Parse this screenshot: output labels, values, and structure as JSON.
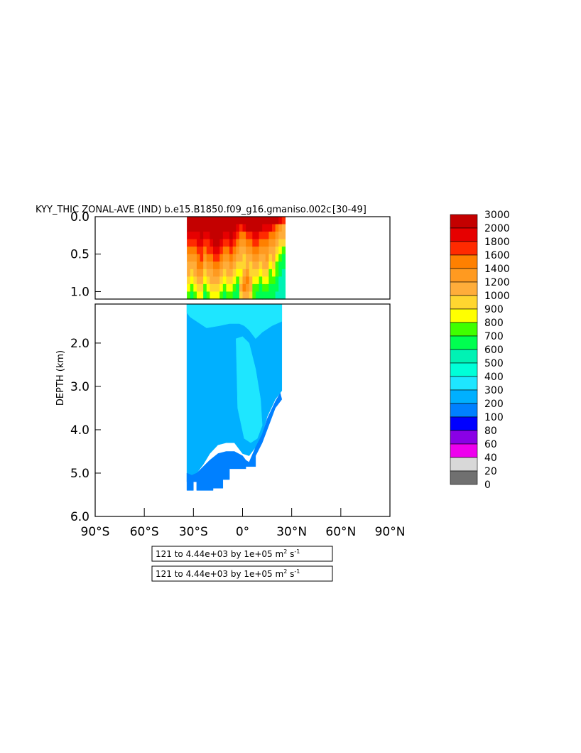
{
  "chart_data": {
    "type": "heatmap",
    "title": "KYY_THIC ZONAL-AVE (IND) b.e15.B1850.f09_g16.gmaniso.002c",
    "title_suffix": " [30-49]",
    "ylabel": "DEPTH (km)",
    "xlabel": "",
    "xlim": [
      -90,
      90
    ],
    "x_ticks": [
      "90°S",
      "60°S",
      "30°S",
      "0°",
      "30°N",
      "60°N",
      "90°N"
    ],
    "x_tick_values": [
      -90,
      -60,
      -30,
      0,
      30,
      60,
      90
    ],
    "upper_panel": {
      "ylim": [
        0.0,
        1.1
      ],
      "y_ticks": [
        "0.0",
        "0.5",
        "1.0"
      ],
      "y_tick_values": [
        0.0,
        0.5,
        1.0
      ]
    },
    "lower_panel": {
      "ylim": [
        1.1,
        6.0
      ],
      "y_ticks": [
        "2.0",
        "3.0",
        "4.0",
        "5.0",
        "6.0"
      ],
      "y_tick_values": [
        2.0,
        3.0,
        4.0,
        5.0,
        6.0
      ]
    },
    "colorbar": {
      "levels": [
        "3000",
        "2000",
        "1800",
        "1600",
        "1400",
        "1200",
        "1000",
        "900",
        "800",
        "700",
        "600",
        "500",
        "400",
        "300",
        "200",
        "100",
        "80",
        "60",
        "40",
        "20",
        "0"
      ],
      "colors": [
        "#c40000",
        "#e60000",
        "#ff2a00",
        "#ff8000",
        "#ff9a20",
        "#ffad3a",
        "#ffd630",
        "#ffff00",
        "#40ff00",
        "#00ff50",
        "#00f2b4",
        "#00ffd8",
        "#1ee6ff",
        "#00b0ff",
        "#0080ff",
        "#0000ff",
        "#8a00e6",
        "#ee00ee",
        "#d8d8d8",
        "#707070"
      ]
    },
    "regions": [
      {
        "name": "core",
        "color": "#00b0ff",
        "x": [
          -34,
          -28,
          -20,
          -12,
          -5,
          0,
          5,
          10,
          15,
          20,
          24,
          24,
          20,
          15,
          12,
          8,
          4,
          0,
          -5,
          -10,
          -15,
          -20,
          -24,
          -28,
          -31,
          -34
        ],
        "y": [
          1.1,
          1.1,
          1.1,
          1.1,
          1.1,
          1.1,
          1.1,
          1.1,
          1.1,
          1.1,
          1.1,
          3.1,
          3.3,
          3.7,
          4.1,
          4.4,
          4.6,
          4.55,
          4.3,
          4.3,
          4.35,
          4.55,
          4.8,
          5.0,
          5.2,
          5.2
        ]
      },
      {
        "name": "light-upper",
        "color": "#1ee6ff",
        "x": [
          -34,
          -30,
          -25,
          -18,
          -12,
          -6,
          -2,
          0,
          3,
          8,
          14,
          20,
          24,
          24,
          18,
          12,
          8,
          4,
          1,
          -2,
          -8,
          -14,
          -22,
          -28,
          -32,
          -34
        ],
        "y": [
          1.1,
          1.1,
          1.1,
          1.1,
          1.1,
          1.1,
          1.1,
          1.1,
          1.1,
          1.1,
          1.1,
          1.1,
          1.1,
          1.5,
          1.6,
          1.75,
          1.9,
          1.7,
          1.6,
          1.55,
          1.55,
          1.6,
          1.65,
          1.5,
          1.4,
          1.3
        ]
      },
      {
        "name": "light-lower",
        "color": "#1ee6ff",
        "x": [
          -4,
          0,
          4,
          8,
          11,
          12,
          9,
          5,
          1,
          -3
        ],
        "y": [
          1.9,
          1.85,
          2.0,
          2.6,
          3.3,
          3.9,
          4.2,
          4.3,
          4.2,
          3.5
        ]
      },
      {
        "name": "deep",
        "color": "#0080ff",
        "x": [
          -34,
          -31,
          -28,
          -24,
          -20,
          -15,
          -10,
          -5,
          0,
          2,
          4,
          8,
          12,
          15,
          20,
          23,
          24,
          20,
          16,
          12,
          8,
          8,
          2,
          2,
          -8,
          -8,
          -12,
          -12,
          -18,
          -18,
          -26,
          -26,
          -28,
          -28,
          -30,
          -30,
          -32,
          -32,
          -34
        ],
        "y": [
          5.0,
          5.05,
          5.0,
          4.85,
          4.7,
          4.55,
          4.5,
          4.5,
          4.6,
          4.7,
          4.75,
          4.4,
          4.1,
          3.75,
          3.35,
          3.15,
          3.3,
          3.5,
          3.9,
          4.3,
          4.6,
          4.85,
          4.85,
          4.9,
          4.9,
          5.15,
          5.15,
          5.35,
          5.35,
          5.4,
          5.4,
          5.4,
          5.4,
          5.2,
          5.2,
          5.4,
          5.4,
          5.4,
          5.4
        ]
      }
    ],
    "upper_columns": [
      {
        "x": -34,
        "v": [
          3000,
          3000,
          1800,
          1600,
          1400,
          1200,
          1000,
          1000,
          900,
          800,
          700
        ]
      },
      {
        "x": -32,
        "v": [
          3000,
          2000,
          1800,
          1600,
          1400,
          1200,
          1000,
          900,
          800,
          700,
          600
        ]
      },
      {
        "x": -30,
        "v": [
          3000,
          2000,
          1800,
          1600,
          1400,
          1200,
          1000,
          1000,
          900,
          800,
          700
        ]
      },
      {
        "x": -28,
        "v": [
          3000,
          2000,
          1800,
          1800,
          1600,
          1400,
          1400,
          1200,
          1000,
          900,
          800
        ]
      },
      {
        "x": -26,
        "v": [
          3000,
          2000,
          2000,
          1800,
          1600,
          1600,
          1400,
          1200,
          1000,
          900,
          800
        ]
      },
      {
        "x": -24,
        "v": [
          3000,
          2000,
          1800,
          1600,
          1400,
          1200,
          1000,
          900,
          800,
          700,
          600
        ]
      },
      {
        "x": -22,
        "v": [
          3000,
          2000,
          1800,
          1600,
          1600,
          1400,
          1200,
          1000,
          900,
          800,
          700
        ]
      },
      {
        "x": -20,
        "v": [
          3000,
          2000,
          2000,
          1800,
          1600,
          1400,
          1200,
          1000,
          1000,
          900,
          800
        ]
      },
      {
        "x": -18,
        "v": [
          3000,
          3000,
          2000,
          2000,
          1800,
          1600,
          1400,
          1200,
          1000,
          900,
          800
        ]
      },
      {
        "x": -16,
        "v": [
          3000,
          3000,
          3000,
          2000,
          1800,
          1600,
          1400,
          1200,
          1000,
          900,
          800
        ]
      },
      {
        "x": -14,
        "v": [
          3000,
          3000,
          2000,
          1800,
          1600,
          1400,
          1200,
          1000,
          900,
          800,
          700
        ]
      },
      {
        "x": -12,
        "v": [
          3000,
          2000,
          1800,
          1600,
          1400,
          1200,
          1000,
          900,
          800,
          700,
          600
        ]
      },
      {
        "x": -10,
        "v": [
          3000,
          2000,
          1800,
          1600,
          1400,
          1200,
          1000,
          1000,
          900,
          800,
          700
        ]
      },
      {
        "x": -8,
        "v": [
          3000,
          2000,
          2000,
          1800,
          1600,
          1400,
          1200,
          1000,
          900,
          800,
          700
        ]
      },
      {
        "x": -6,
        "v": [
          3000,
          2000,
          1800,
          1600,
          1400,
          1200,
          1000,
          900,
          800,
          700,
          600
        ]
      },
      {
        "x": -4,
        "v": [
          3000,
          1800,
          1600,
          1400,
          1200,
          1000,
          900,
          800,
          700,
          600,
          600
        ]
      },
      {
        "x": -2,
        "v": [
          3000,
          1600,
          1400,
          1200,
          1000,
          1000,
          900,
          800,
          900,
          1000,
          900
        ]
      },
      {
        "x": 0,
        "v": [
          3000,
          1800,
          1400,
          1200,
          1000,
          900,
          900,
          1000,
          1200,
          1400,
          1000
        ]
      },
      {
        "x": 2,
        "v": [
          3000,
          2000,
          1600,
          1400,
          1200,
          1000,
          1000,
          1200,
          1400,
          1200,
          1000
        ]
      },
      {
        "x": 4,
        "v": [
          3000,
          2000,
          1600,
          1400,
          1200,
          1000,
          900,
          900,
          1000,
          1000,
          900
        ]
      },
      {
        "x": 6,
        "v": [
          3000,
          2000,
          1800,
          1600,
          1400,
          1200,
          1000,
          900,
          800,
          700,
          700
        ]
      },
      {
        "x": 8,
        "v": [
          3000,
          2000,
          1800,
          1600,
          1400,
          1200,
          1000,
          900,
          800,
          700,
          600
        ]
      },
      {
        "x": 10,
        "v": [
          3000,
          2000,
          1600,
          1400,
          1200,
          1000,
          900,
          800,
          700,
          600,
          600
        ]
      },
      {
        "x": 12,
        "v": [
          3000,
          1800,
          1600,
          1400,
          1200,
          1000,
          1000,
          900,
          800,
          700,
          600
        ]
      },
      {
        "x": 14,
        "v": [
          3000,
          1800,
          1600,
          1400,
          1200,
          1200,
          1000,
          900,
          800,
          700,
          600
        ]
      },
      {
        "x": 16,
        "v": [
          3000,
          1800,
          1400,
          1200,
          1000,
          900,
          800,
          700,
          700,
          600,
          600
        ]
      },
      {
        "x": 18,
        "v": [
          3000,
          1600,
          1400,
          1200,
          1000,
          1000,
          900,
          800,
          700,
          600,
          600
        ]
      },
      {
        "x": 20,
        "v": [
          2000,
          1400,
          1200,
          1000,
          900,
          800,
          700,
          700,
          600,
          600,
          500
        ]
      },
      {
        "x": 22,
        "v": [
          1800,
          1200,
          1000,
          900,
          800,
          700,
          600,
          600,
          500,
          500,
          500
        ]
      },
      {
        "x": 24,
        "v": [
          1600,
          1000,
          1000,
          900,
          700,
          600,
          600,
          500,
          500,
          500,
          500
        ]
      }
    ],
    "info_boxes": [
      {
        "text": "121 to 4.44e+03 by 1e+05 m",
        "sup1": "2",
        "mid": " s",
        "sup2": "-1"
      },
      {
        "text": "121 to 4.44e+03 by 1e+05 m",
        "sup1": "2",
        "mid": " s",
        "sup2": "-1"
      }
    ]
  }
}
